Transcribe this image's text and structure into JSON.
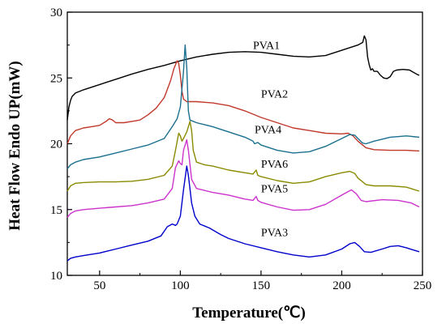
{
  "chart_data": {
    "type": "line",
    "title": "",
    "xlabel": "Temperature(℃)",
    "ylabel": "Heat Flow Endo UP(mW)",
    "xlim": [
      30,
      250
    ],
    "ylim": [
      10,
      30
    ],
    "xticks": [
      "50",
      "100",
      "150",
      "200",
      "250"
    ],
    "yticks": [
      "10",
      "15",
      "20",
      "25",
      "30"
    ],
    "grid": false,
    "legend": "none",
    "series": [
      {
        "name": "PVA1",
        "color": "#000000",
        "label_at": [
          145,
          27.2
        ],
        "points": [
          [
            30,
            21.8
          ],
          [
            31,
            22.8
          ],
          [
            32,
            23.3
          ],
          [
            33,
            23.6
          ],
          [
            35,
            23.85
          ],
          [
            40,
            24.1
          ],
          [
            50,
            24.5
          ],
          [
            60,
            24.9
          ],
          [
            70,
            25.3
          ],
          [
            80,
            25.65
          ],
          [
            90,
            25.95
          ],
          [
            100,
            26.3
          ],
          [
            110,
            26.6
          ],
          [
            120,
            26.8
          ],
          [
            130,
            26.95
          ],
          [
            140,
            27.0
          ],
          [
            150,
            26.95
          ],
          [
            160,
            26.8
          ],
          [
            170,
            26.65
          ],
          [
            180,
            26.6
          ],
          [
            190,
            26.7
          ],
          [
            200,
            27.1
          ],
          [
            210,
            27.5
          ],
          [
            213,
            27.7
          ],
          [
            214,
            28.2
          ],
          [
            215,
            27.9
          ],
          [
            216,
            26.6
          ],
          [
            217,
            26.0
          ],
          [
            218,
            25.6
          ],
          [
            219,
            25.7
          ],
          [
            220,
            25.5
          ],
          [
            222,
            25.5
          ],
          [
            224,
            25.2
          ],
          [
            226,
            25.0
          ],
          [
            228,
            24.95
          ],
          [
            230,
            25.1
          ],
          [
            232,
            25.5
          ],
          [
            234,
            25.6
          ],
          [
            238,
            25.65
          ],
          [
            242,
            25.6
          ],
          [
            244,
            25.45
          ],
          [
            247,
            25.25
          ],
          [
            248,
            25.2
          ]
        ]
      },
      {
        "name": "PVA2",
        "color": "#c0392b",
        "label_at": [
          150,
          23.5
        ],
        "points": [
          [
            30,
            20.0
          ],
          [
            32,
            20.6
          ],
          [
            35,
            21.0
          ],
          [
            40,
            21.2
          ],
          [
            45,
            21.3
          ],
          [
            50,
            21.4
          ],
          [
            54,
            21.7
          ],
          [
            56,
            21.9
          ],
          [
            58,
            21.8
          ],
          [
            60,
            21.6
          ],
          [
            65,
            21.6
          ],
          [
            70,
            21.7
          ],
          [
            75,
            21.8
          ],
          [
            80,
            22.2
          ],
          [
            85,
            22.7
          ],
          [
            90,
            23.5
          ],
          [
            94,
            24.8
          ],
          [
            96,
            25.7
          ],
          [
            98,
            26.3
          ],
          [
            99,
            26.1
          ],
          [
            100,
            25.2
          ],
          [
            101,
            24.0
          ],
          [
            102,
            23.4
          ],
          [
            104,
            23.2
          ],
          [
            110,
            23.2
          ],
          [
            120,
            23.1
          ],
          [
            130,
            22.9
          ],
          [
            140,
            22.5
          ],
          [
            150,
            22.0
          ],
          [
            160,
            21.6
          ],
          [
            170,
            21.2
          ],
          [
            180,
            21.0
          ],
          [
            190,
            20.8
          ],
          [
            200,
            20.75
          ],
          [
            204,
            20.8
          ],
          [
            207,
            20.6
          ],
          [
            210,
            20.2
          ],
          [
            215,
            19.7
          ],
          [
            220,
            19.55
          ],
          [
            230,
            19.5
          ],
          [
            240,
            19.5
          ],
          [
            248,
            19.45
          ]
        ]
      },
      {
        "name": "PVA4",
        "color": "#1b6f8f",
        "label_at": [
          146,
          20.8
        ],
        "points": [
          [
            30,
            18.1
          ],
          [
            32,
            18.4
          ],
          [
            35,
            18.6
          ],
          [
            40,
            18.8
          ],
          [
            50,
            19.0
          ],
          [
            60,
            19.3
          ],
          [
            70,
            19.6
          ],
          [
            80,
            19.9
          ],
          [
            90,
            20.4
          ],
          [
            95,
            21.3
          ],
          [
            98,
            21.9
          ],
          [
            100,
            22.8
          ],
          [
            102,
            25.5
          ],
          [
            103,
            27.5
          ],
          [
            104,
            25.8
          ],
          [
            105,
            22.5
          ],
          [
            106,
            21.8
          ],
          [
            110,
            21.6
          ],
          [
            120,
            21.3
          ],
          [
            130,
            20.9
          ],
          [
            140,
            20.5
          ],
          [
            145,
            20.2
          ],
          [
            146,
            20.0
          ],
          [
            148,
            20.1
          ],
          [
            150,
            19.9
          ],
          [
            160,
            19.5
          ],
          [
            170,
            19.3
          ],
          [
            180,
            19.4
          ],
          [
            190,
            19.8
          ],
          [
            200,
            20.4
          ],
          [
            205,
            20.7
          ],
          [
            208,
            20.65
          ],
          [
            210,
            20.4
          ],
          [
            213,
            20.05
          ],
          [
            215,
            20.0
          ],
          [
            220,
            20.2
          ],
          [
            230,
            20.5
          ],
          [
            240,
            20.6
          ],
          [
            248,
            20.5
          ]
        ]
      },
      {
        "name": "PVA6",
        "color": "#8a8a00",
        "label_at": [
          150,
          18.2
        ],
        "points": [
          [
            30,
            16.4
          ],
          [
            32,
            16.8
          ],
          [
            35,
            17.0
          ],
          [
            40,
            17.05
          ],
          [
            50,
            17.1
          ],
          [
            60,
            17.1
          ],
          [
            70,
            17.15
          ],
          [
            80,
            17.3
          ],
          [
            90,
            17.6
          ],
          [
            95,
            18.3
          ],
          [
            97,
            19.5
          ],
          [
            99,
            20.8
          ],
          [
            100,
            20.6
          ],
          [
            101,
            20.2
          ],
          [
            102,
            20.4
          ],
          [
            104,
            20.9
          ],
          [
            106,
            21.7
          ],
          [
            107,
            21.0
          ],
          [
            108,
            19.5
          ],
          [
            110,
            18.6
          ],
          [
            115,
            18.4
          ],
          [
            120,
            18.3
          ],
          [
            130,
            18.0
          ],
          [
            140,
            17.8
          ],
          [
            145,
            17.7
          ],
          [
            147,
            18.0
          ],
          [
            148,
            17.6
          ],
          [
            150,
            17.5
          ],
          [
            160,
            17.2
          ],
          [
            170,
            17.0
          ],
          [
            180,
            17.1
          ],
          [
            190,
            17.5
          ],
          [
            200,
            17.8
          ],
          [
            205,
            17.9
          ],
          [
            208,
            17.75
          ],
          [
            210,
            17.4
          ],
          [
            215,
            16.9
          ],
          [
            220,
            16.8
          ],
          [
            230,
            16.8
          ],
          [
            240,
            16.7
          ],
          [
            248,
            16.4
          ]
        ]
      },
      {
        "name": "PVA5",
        "color": "#cc33cc",
        "label_at": [
          150,
          16.3
        ],
        "points": [
          [
            30,
            14.4
          ],
          [
            32,
            14.7
          ],
          [
            35,
            14.9
          ],
          [
            40,
            15.0
          ],
          [
            50,
            15.1
          ],
          [
            60,
            15.2
          ],
          [
            70,
            15.3
          ],
          [
            80,
            15.5
          ],
          [
            90,
            15.8
          ],
          [
            95,
            16.6
          ],
          [
            97,
            18.2
          ],
          [
            99,
            18.7
          ],
          [
            100,
            18.5
          ],
          [
            101,
            18.4
          ],
          [
            102,
            19.5
          ],
          [
            104,
            20.3
          ],
          [
            105,
            19.5
          ],
          [
            107,
            17.3
          ],
          [
            110,
            16.6
          ],
          [
            120,
            16.3
          ],
          [
            130,
            16.1
          ],
          [
            140,
            15.8
          ],
          [
            145,
            15.7
          ],
          [
            147,
            16.0
          ],
          [
            148,
            15.7
          ],
          [
            150,
            15.55
          ],
          [
            160,
            15.2
          ],
          [
            170,
            14.95
          ],
          [
            180,
            15.0
          ],
          [
            190,
            15.4
          ],
          [
            200,
            16.1
          ],
          [
            206,
            16.5
          ],
          [
            209,
            16.2
          ],
          [
            212,
            15.7
          ],
          [
            215,
            15.6
          ],
          [
            225,
            15.75
          ],
          [
            235,
            15.7
          ],
          [
            243,
            15.5
          ],
          [
            248,
            15.2
          ]
        ]
      },
      {
        "name": "PVA3",
        "color": "#0000cc",
        "label_at": [
          150,
          13.0
        ],
        "points": [
          [
            30,
            11.1
          ],
          [
            32,
            11.3
          ],
          [
            35,
            11.4
          ],
          [
            40,
            11.5
          ],
          [
            50,
            11.7
          ],
          [
            60,
            12.0
          ],
          [
            70,
            12.3
          ],
          [
            80,
            12.6
          ],
          [
            88,
            13.0
          ],
          [
            92,
            13.7
          ],
          [
            95,
            13.9
          ],
          [
            97,
            13.8
          ],
          [
            98,
            13.9
          ],
          [
            100,
            14.5
          ],
          [
            102,
            16.5
          ],
          [
            104,
            18.3
          ],
          [
            105,
            17.6
          ],
          [
            107,
            15.5
          ],
          [
            109,
            14.5
          ],
          [
            112,
            13.9
          ],
          [
            118,
            13.6
          ],
          [
            125,
            13.1
          ],
          [
            130,
            12.8
          ],
          [
            140,
            12.4
          ],
          [
            150,
            12.1
          ],
          [
            160,
            11.8
          ],
          [
            170,
            11.55
          ],
          [
            180,
            11.4
          ],
          [
            190,
            11.55
          ],
          [
            200,
            12.0
          ],
          [
            205,
            12.4
          ],
          [
            208,
            12.5
          ],
          [
            211,
            12.2
          ],
          [
            214,
            11.8
          ],
          [
            218,
            11.75
          ],
          [
            225,
            12.0
          ],
          [
            230,
            12.2
          ],
          [
            235,
            12.25
          ],
          [
            240,
            12.1
          ],
          [
            245,
            11.9
          ],
          [
            248,
            11.8
          ]
        ]
      }
    ]
  }
}
